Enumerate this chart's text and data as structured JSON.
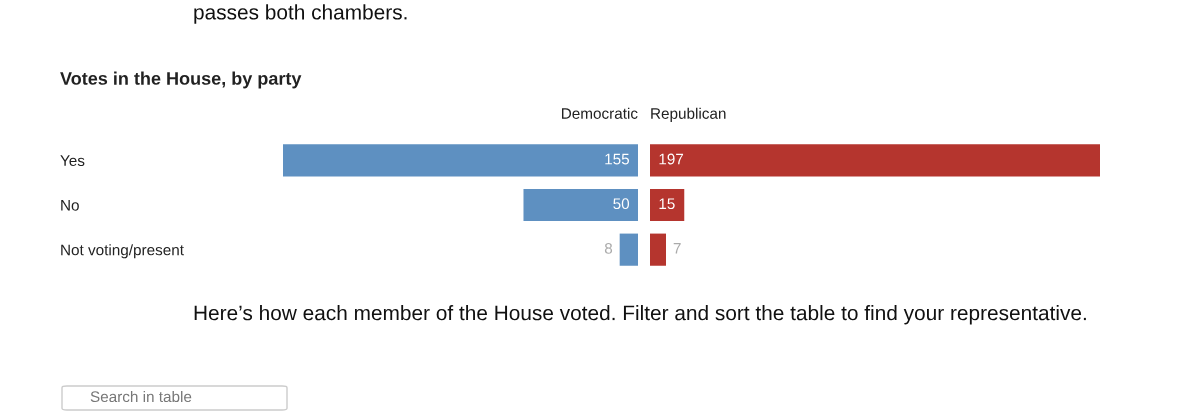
{
  "chart_data": [
    {
      "type": "bar",
      "orientation": "horizontal",
      "title": "Votes in the House, by party",
      "categories": [
        "Yes",
        "No",
        "Not voting/present"
      ],
      "data_labels": true,
      "series": [
        {
          "name": "Democratic",
          "color": "#5e90c1",
          "values": [
            155,
            50,
            8
          ]
        }
      ],
      "annotations": [
        "passes both chambers.",
        "Here’s how each member of the House voted. Filter and sort the table to find your representative.",
        "Search in table"
      ]
    },
    {
      "type": "bar",
      "orientation": "horizontal",
      "categories": [
        null,
        null,
        null
      ],
      "data_labels": true,
      "series": [
        {
          "name": "Republican",
          "color": "#b5352e",
          "values": [
            197,
            15,
            7
          ]
        }
      ]
    }
  ]
}
